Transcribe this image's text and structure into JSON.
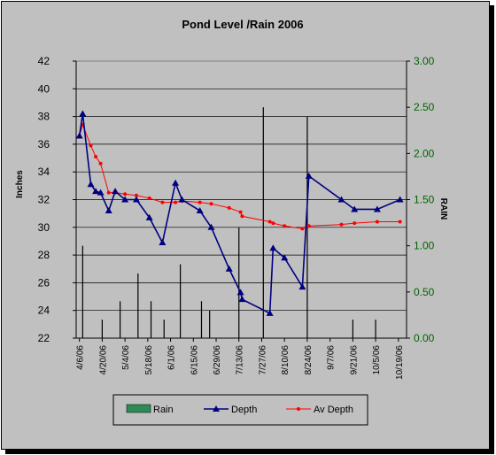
{
  "chart_data": {
    "type": "line",
    "title": "Pond Level /Rain 2006",
    "ylabel": "Inches",
    "ylabel_right": "RAIN",
    "ylim": [
      22,
      42
    ],
    "ylim_right": [
      0,
      3
    ],
    "yticks": [
      "22",
      "24",
      "26",
      "28",
      "30",
      "32",
      "34",
      "36",
      "38",
      "40",
      "42"
    ],
    "yticks_right": [
      "0.00",
      "0.50",
      "1.00",
      "1.50",
      "2.00",
      "2.50",
      "3.00"
    ],
    "x_range": [
      "2006-04-04",
      "2006-10-24"
    ],
    "xticks": [
      "4/6/06",
      "4/20/06",
      "5/4/06",
      "5/18/06",
      "6/1/06",
      "6/15/06",
      "6/29/06",
      "7/13/06",
      "7/27/06",
      "8/10/06",
      "8/24/06",
      "9/7/06",
      "9/21/06",
      "10/5/06",
      "10/19/06"
    ],
    "xtick_dates": [
      "2006-04-06",
      "2006-04-20",
      "2006-05-04",
      "2006-05-18",
      "2006-06-01",
      "2006-06-15",
      "2006-06-29",
      "2006-07-13",
      "2006-07-27",
      "2006-08-10",
      "2006-08-24",
      "2006-09-07",
      "2006-09-21",
      "2006-10-05",
      "2006-10-19"
    ],
    "legend_position": "bottom",
    "grid": true,
    "series": [
      {
        "name": "Rain",
        "type": "bar",
        "axis": "right",
        "color": "#2e8b57",
        "points": [
          {
            "x": "2006-04-08",
            "y": 1.0
          },
          {
            "x": "2006-04-20",
            "y": 0.2
          },
          {
            "x": "2006-05-01",
            "y": 0.4
          },
          {
            "x": "2006-05-12",
            "y": 0.7
          },
          {
            "x": "2006-05-20",
            "y": 0.4
          },
          {
            "x": "2006-05-28",
            "y": 0.2
          },
          {
            "x": "2006-06-07",
            "y": 0.8
          },
          {
            "x": "2006-06-20",
            "y": 0.4
          },
          {
            "x": "2006-06-25",
            "y": 0.3
          },
          {
            "x": "2006-07-13",
            "y": 1.2
          },
          {
            "x": "2006-07-28",
            "y": 2.5
          },
          {
            "x": "2006-08-24",
            "y": 2.4
          },
          {
            "x": "2006-09-21",
            "y": 0.2
          },
          {
            "x": "2006-10-05",
            "y": 0.2
          }
        ]
      },
      {
        "name": "Depth",
        "type": "line",
        "axis": "left",
        "color": "#000080",
        "marker": "triangle",
        "points": [
          {
            "x": "2006-04-06",
            "y": 36.6
          },
          {
            "x": "2006-04-08",
            "y": 38.2
          },
          {
            "x": "2006-04-13",
            "y": 33.1
          },
          {
            "x": "2006-04-16",
            "y": 32.6
          },
          {
            "x": "2006-04-19",
            "y": 32.5
          },
          {
            "x": "2006-04-24",
            "y": 31.2
          },
          {
            "x": "2006-04-28",
            "y": 32.6
          },
          {
            "x": "2006-05-04",
            "y": 32.0
          },
          {
            "x": "2006-05-11",
            "y": 32.0
          },
          {
            "x": "2006-05-19",
            "y": 30.7
          },
          {
            "x": "2006-05-27",
            "y": 28.9
          },
          {
            "x": "2006-06-04",
            "y": 33.2
          },
          {
            "x": "2006-06-08",
            "y": 32.0
          },
          {
            "x": "2006-06-19",
            "y": 31.2
          },
          {
            "x": "2006-06-26",
            "y": 30.0
          },
          {
            "x": "2006-07-07",
            "y": 27.0
          },
          {
            "x": "2006-07-14",
            "y": 25.3
          },
          {
            "x": "2006-07-15",
            "y": 24.8
          },
          {
            "x": "2006-08-01",
            "y": 23.8
          },
          {
            "x": "2006-08-03",
            "y": 28.5
          },
          {
            "x": "2006-08-10",
            "y": 27.8
          },
          {
            "x": "2006-08-21",
            "y": 25.7
          },
          {
            "x": "2006-08-25",
            "y": 33.7
          },
          {
            "x": "2006-09-14",
            "y": 32.0
          },
          {
            "x": "2006-09-22",
            "y": 31.3
          },
          {
            "x": "2006-10-06",
            "y": 31.3
          },
          {
            "x": "2006-10-20",
            "y": 32.0
          }
        ]
      },
      {
        "name": "Av Depth",
        "type": "line",
        "axis": "left",
        "color": "#ff0000",
        "marker": "dot",
        "points": [
          {
            "x": "2006-04-06",
            "y": 36.6
          },
          {
            "x": "2006-04-08",
            "y": 37.4
          },
          {
            "x": "2006-04-13",
            "y": 35.9
          },
          {
            "x": "2006-04-16",
            "y": 35.1
          },
          {
            "x": "2006-04-19",
            "y": 34.6
          },
          {
            "x": "2006-04-24",
            "y": 32.5
          },
          {
            "x": "2006-04-28",
            "y": 32.5
          },
          {
            "x": "2006-05-04",
            "y": 32.4
          },
          {
            "x": "2006-05-11",
            "y": 32.3
          },
          {
            "x": "2006-05-19",
            "y": 32.1
          },
          {
            "x": "2006-05-27",
            "y": 31.8
          },
          {
            "x": "2006-06-04",
            "y": 31.8
          },
          {
            "x": "2006-06-08",
            "y": 31.9
          },
          {
            "x": "2006-06-19",
            "y": 31.8
          },
          {
            "x": "2006-06-26",
            "y": 31.7
          },
          {
            "x": "2006-07-07",
            "y": 31.4
          },
          {
            "x": "2006-07-14",
            "y": 31.1
          },
          {
            "x": "2006-07-15",
            "y": 30.8
          },
          {
            "x": "2006-08-01",
            "y": 30.4
          },
          {
            "x": "2006-08-03",
            "y": 30.3
          },
          {
            "x": "2006-08-10",
            "y": 30.1
          },
          {
            "x": "2006-08-21",
            "y": 29.9
          },
          {
            "x": "2006-08-25",
            "y": 30.1
          },
          {
            "x": "2006-09-14",
            "y": 30.2
          },
          {
            "x": "2006-09-22",
            "y": 30.3
          },
          {
            "x": "2006-10-06",
            "y": 30.4
          },
          {
            "x": "2006-10-20",
            "y": 30.4
          }
        ]
      }
    ]
  }
}
